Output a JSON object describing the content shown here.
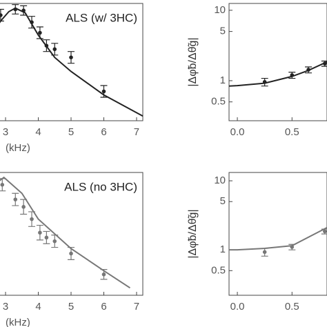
{
  "chart_data": [
    {
      "type": "scatter",
      "annotation": "ALS (w/ 3HC)",
      "x_label": "(kHz)",
      "color": "#222",
      "xlim": [
        2.62,
        7.19
      ],
      "ylim": [
        0,
        1
      ],
      "xticks": [
        3,
        4,
        5,
        6,
        7
      ],
      "points": {
        "x": [
          2.85,
          3.3,
          3.55,
          3.8,
          4.05,
          4.25,
          4.5,
          5,
          6
        ],
        "values": [
          0.9,
          0.95,
          0.94,
          0.84,
          0.75,
          0.64,
          0.61,
          0.54,
          0.25
        ],
        "errors": [
          0.05,
          0.04,
          0.04,
          0.05,
          0.05,
          0.05,
          0.05,
          0.05,
          0.05
        ]
      },
      "fit": {
        "x": [
          2.62,
          2.85,
          3.1,
          3.3,
          3.6,
          4.0,
          4.5,
          5.0,
          6.0,
          7.19
        ],
        "values": [
          0.75,
          0.85,
          0.93,
          0.96,
          0.92,
          0.73,
          0.54,
          0.42,
          0.22,
          0.04
        ]
      }
    },
    {
      "type": "scatter",
      "annotation": "ALS (no 3HC)",
      "x_label": "(kHz)",
      "color": "#777",
      "xlim": [
        2.62,
        7.19
      ],
      "ylim": [
        0,
        1
      ],
      "xticks": [
        3,
        4,
        5,
        6,
        7
      ],
      "points": {
        "x": [
          2.9,
          3.3,
          3.55,
          3.8,
          4.05,
          4.25,
          4.5,
          5,
          6
        ],
        "values": [
          0.9,
          0.78,
          0.72,
          0.62,
          0.51,
          0.47,
          0.44,
          0.34,
          0.17
        ],
        "errors": [
          0.05,
          0.05,
          0.06,
          0.06,
          0.06,
          0.05,
          0.05,
          0.05,
          0.04
        ]
      },
      "fit": {
        "x": [
          2.62,
          2.8,
          2.95,
          3.5,
          4.0,
          5.0,
          6.0,
          6.8
        ],
        "values": [
          0.85,
          0.93,
          0.96,
          0.83,
          0.62,
          0.38,
          0.2,
          0.06
        ]
      }
    },
    {
      "type": "scatter",
      "y_label": "|Δφ̃b/Δθ̃g|",
      "color": "#222",
      "log_y": true,
      "xlim": [
        -0.076,
        0.82
      ],
      "ylim": [
        0.27,
        12.5
      ],
      "xticks": [
        {
          "value": 0,
          "label": "0.0"
        },
        0.5
      ],
      "yticks": [
        0.5,
        1,
        5,
        10
      ],
      "points": {
        "x": [
          0.25,
          0.5,
          0.65,
          0.8
        ],
        "values": [
          0.96,
          1.2,
          1.43,
          1.75
        ],
        "errors": [
          0.12,
          0.12,
          0.14,
          0.15
        ]
      },
      "fit": {
        "x": [
          -0.076,
          0.0,
          0.25,
          0.5,
          0.65,
          0.82
        ],
        "values": [
          0.84,
          0.85,
          0.92,
          1.15,
          1.4,
          1.85
        ]
      }
    },
    {
      "type": "scatter",
      "y_label": "|Δφ̃b/Δθ̃g|",
      "color": "#777",
      "log_y": true,
      "xlim": [
        -0.076,
        0.82
      ],
      "ylim": [
        0.22,
        13.2
      ],
      "xticks": [
        {
          "value": 0,
          "label": "0.0"
        },
        0.5
      ],
      "yticks": [
        0.5,
        1,
        5,
        10
      ],
      "points": {
        "x": [
          0.25,
          0.5,
          0.8
        ],
        "values": [
          0.93,
          1.1,
          1.85
        ],
        "errors": [
          0.12,
          0.1,
          0.15
        ]
      },
      "fit": {
        "x": [
          -0.076,
          0.0,
          0.25,
          0.5,
          0.82
        ],
        "values": [
          1.0,
          1.0,
          1.05,
          1.15,
          2.1
        ]
      }
    }
  ]
}
